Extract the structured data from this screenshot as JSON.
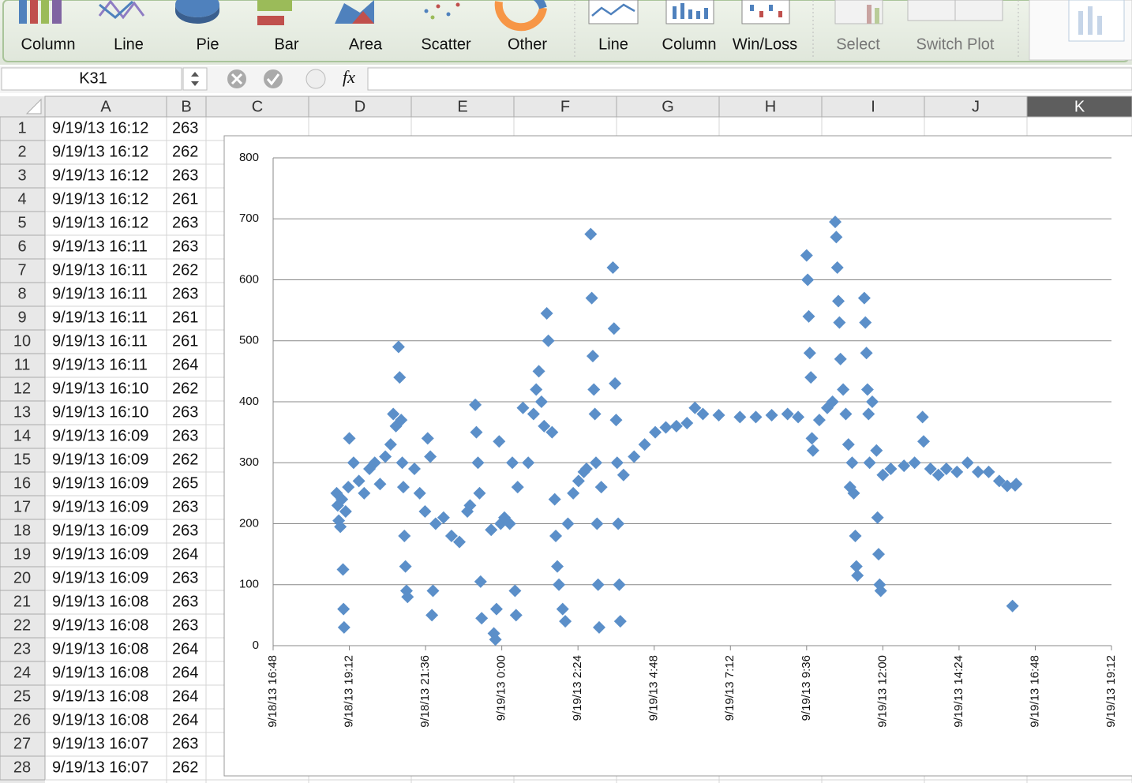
{
  "ribbon": {
    "buttons": [
      "Column",
      "Line",
      "Pie",
      "Bar",
      "Area",
      "Scatter",
      "Other",
      "Line",
      "Column",
      "Win/Loss",
      "Select",
      "Switch Plot"
    ]
  },
  "formula_bar": {
    "name_box": "K31",
    "fx": "fx"
  },
  "sheet": {
    "columns": [
      "A",
      "B",
      "C",
      "D",
      "E",
      "F",
      "G",
      "H",
      "I",
      "J",
      "K"
    ],
    "rows": [
      [
        1,
        "9/19/13 16:12",
        263
      ],
      [
        2,
        "9/19/13 16:12",
        262
      ],
      [
        3,
        "9/19/13 16:12",
        263
      ],
      [
        4,
        "9/19/13 16:12",
        261
      ],
      [
        5,
        "9/19/13 16:12",
        263
      ],
      [
        6,
        "9/19/13 16:11",
        263
      ],
      [
        7,
        "9/19/13 16:11",
        262
      ],
      [
        8,
        "9/19/13 16:11",
        263
      ],
      [
        9,
        "9/19/13 16:11",
        261
      ],
      [
        10,
        "9/19/13 16:11",
        261
      ],
      [
        11,
        "9/19/13 16:11",
        264
      ],
      [
        12,
        "9/19/13 16:10",
        262
      ],
      [
        13,
        "9/19/13 16:10",
        263
      ],
      [
        14,
        "9/19/13 16:09",
        263
      ],
      [
        15,
        "9/19/13 16:09",
        262
      ],
      [
        16,
        "9/19/13 16:09",
        265
      ],
      [
        17,
        "9/19/13 16:09",
        263
      ],
      [
        18,
        "9/19/13 16:09",
        263
      ],
      [
        19,
        "9/19/13 16:09",
        264
      ],
      [
        20,
        "9/19/13 16:09",
        263
      ],
      [
        21,
        "9/19/13 16:08",
        263
      ],
      [
        22,
        "9/19/13 16:08",
        263
      ],
      [
        23,
        "9/19/13 16:08",
        264
      ],
      [
        24,
        "9/19/13 16:08",
        264
      ],
      [
        25,
        "9/19/13 16:08",
        264
      ],
      [
        26,
        "9/19/13 16:08",
        264
      ],
      [
        27,
        "9/19/13 16:07",
        263
      ],
      [
        28,
        "9/19/13 16:07",
        262
      ]
    ]
  },
  "chart_data": {
    "type": "scatter",
    "grid": true,
    "xlim": [
      "9/18/13 16:48",
      "9/19/13 19:12"
    ],
    "xticks": [
      "9/18/13 16:48",
      "9/18/13 19:12",
      "9/18/13 21:36",
      "9/19/13 0:00",
      "9/19/13 2:24",
      "9/19/13 4:48",
      "9/19/13 7:12",
      "9/19/13 9:36",
      "9/19/13 12:00",
      "9/19/13 14:24",
      "9/19/13 16:48",
      "9/19/13 19:12"
    ],
    "ylim": [
      0,
      800
    ],
    "yticks": [
      0,
      100,
      200,
      300,
      400,
      500,
      600,
      700,
      800
    ],
    "series": [
      {
        "color": "#5b8fc9",
        "x": [
          "9/18/13 18:48",
          "9/18/13 18:50",
          "9/18/13 18:52",
          "9/18/13 18:55",
          "9/18/13 18:58",
          "9/18/13 19:00",
          "9/18/13 19:01",
          "9/18/13 19:02",
          "9/18/13 19:05",
          "9/18/13 19:10",
          "9/18/13 19:12",
          "9/18/13 19:20",
          "9/18/13 19:30",
          "9/18/13 19:40",
          "9/18/13 19:50",
          "9/18/13 20:00",
          "9/18/13 20:10",
          "9/18/13 20:20",
          "9/18/13 20:30",
          "9/18/13 20:35",
          "9/18/13 20:40",
          "9/18/13 20:45",
          "9/18/13 20:47",
          "9/18/13 20:50",
          "9/18/13 20:52",
          "9/18/13 20:54",
          "9/18/13 20:56",
          "9/18/13 20:58",
          "9/18/13 21:00",
          "9/18/13 21:02",
          "9/18/13 21:15",
          "9/18/13 21:25",
          "9/18/13 21:35",
          "9/18/13 21:40",
          "9/18/13 21:45",
          "9/18/13 21:48",
          "9/18/13 21:50",
          "9/18/13 21:55",
          "9/18/13 22:10",
          "9/18/13 22:25",
          "9/18/13 22:40",
          "9/18/13 22:55",
          "9/18/13 23:00",
          "9/18/13 23:10",
          "9/18/13 23:12",
          "9/18/13 23:15",
          "9/18/13 23:18",
          "9/18/13 23:20",
          "9/18/13 23:22",
          "9/18/13 23:40",
          "9/18/13 23:45",
          "9/18/13 23:48",
          "9/18/13 23:50",
          "9/18/13 23:55",
          "9/18/13 23:58",
          "9/19/13 0:05",
          "9/19/13 0:15",
          "9/19/13 0:20",
          "9/19/13 0:25",
          "9/19/13 0:27",
          "9/19/13 0:30",
          "9/19/13 0:40",
          "9/19/13 0:50",
          "9/19/13 1:00",
          "9/19/13 1:05",
          "9/19/13 1:10",
          "9/19/13 1:15",
          "9/19/13 1:20",
          "9/19/13 1:25",
          "9/19/13 1:28",
          "9/19/13 1:35",
          "9/19/13 1:40",
          "9/19/13 1:42",
          "9/19/13 1:45",
          "9/19/13 1:48",
          "9/19/13 1:55",
          "9/19/13 2:00",
          "9/19/13 2:05",
          "9/19/13 2:15",
          "9/19/13 2:25",
          "9/19/13 2:35",
          "9/19/13 2:40",
          "9/19/13 2:48",
          "9/19/13 2:50",
          "9/19/13 2:52",
          "9/19/13 2:54",
          "9/19/13 2:56",
          "9/19/13 2:58",
          "9/19/13 3:00",
          "9/19/13 3:02",
          "9/19/13 3:04",
          "9/19/13 3:08",
          "9/19/13 3:30",
          "9/19/13 3:32",
          "9/19/13 3:34",
          "9/19/13 3:36",
          "9/19/13 3:38",
          "9/19/13 3:40",
          "9/19/13 3:42",
          "9/19/13 3:44",
          "9/19/13 3:50",
          "9/19/13 4:10",
          "9/19/13 4:30",
          "9/19/13 4:50",
          "9/19/13 5:10",
          "9/19/13 5:30",
          "9/19/13 5:50",
          "9/19/13 6:05",
          "9/19/13 6:20",
          "9/19/13 6:50",
          "9/19/13 7:30",
          "9/19/13 8:00",
          "9/19/13 8:30",
          "9/19/13 9:00",
          "9/19/13 9:20",
          "9/19/13 9:36",
          "9/19/13 9:38",
          "9/19/13 9:40",
          "9/19/13 9:42",
          "9/19/13 9:44",
          "9/19/13 9:46",
          "9/19/13 9:48",
          "9/19/13 10:00",
          "9/19/13 10:15",
          "9/19/13 10:25",
          "9/19/13 10:30",
          "9/19/13 10:32",
          "9/19/13 10:34",
          "9/19/13 10:36",
          "9/19/13 10:38",
          "9/19/13 10:40",
          "9/19/13 10:45",
          "9/19/13 10:50",
          "9/19/13 10:55",
          "9/19/13 10:58",
          "9/19/13 11:02",
          "9/19/13 11:05",
          "9/19/13 11:08",
          "9/19/13 11:10",
          "9/19/13 11:12",
          "9/19/13 11:25",
          "9/19/13 11:27",
          "9/19/13 11:29",
          "9/19/13 11:31",
          "9/19/13 11:33",
          "9/19/13 11:35",
          "9/19/13 11:40",
          "9/19/13 11:48",
          "9/19/13 11:50",
          "9/19/13 11:52",
          "9/19/13 11:54",
          "9/19/13 11:56",
          "9/19/13 12:00",
          "9/19/13 12:15",
          "9/19/13 12:40",
          "9/19/13 13:00",
          "9/19/13 13:15",
          "9/19/13 13:17",
          "9/19/13 13:30",
          "9/19/13 13:45",
          "9/19/13 14:00",
          "9/19/13 14:20",
          "9/19/13 14:40",
          "9/19/13 15:00",
          "9/19/13 15:20",
          "9/19/13 15:40",
          "9/19/13 15:55",
          "9/19/13 16:05",
          "9/19/13 16:10",
          "9/19/13 16:12"
        ],
        "values": [
          250,
          230,
          205,
          195,
          240,
          125,
          60,
          30,
          220,
          260,
          340,
          300,
          270,
          250,
          290,
          300,
          265,
          310,
          330,
          380,
          360,
          490,
          440,
          370,
          300,
          260,
          180,
          130,
          90,
          80,
          290,
          250,
          220,
          340,
          310,
          50,
          90,
          200,
          210,
          180,
          170,
          220,
          230,
          395,
          350,
          300,
          250,
          105,
          45,
          190,
          20,
          10,
          60,
          335,
          200,
          210,
          200,
          300,
          90,
          50,
          260,
          390,
          300,
          380,
          420,
          450,
          400,
          360,
          545,
          500,
          350,
          240,
          180,
          130,
          100,
          60,
          40,
          200,
          250,
          270,
          285,
          290,
          675,
          570,
          475,
          420,
          380,
          300,
          200,
          100,
          30,
          260,
          620,
          520,
          430,
          370,
          300,
          200,
          100,
          40,
          280,
          310,
          330,
          350,
          358,
          360,
          365,
          390,
          380,
          378,
          375,
          375,
          378,
          380,
          375,
          640,
          600,
          540,
          480,
          440,
          340,
          320,
          370,
          390,
          400,
          695,
          670,
          620,
          565,
          530,
          470,
          420,
          380,
          330,
          260,
          300,
          250,
          180,
          130,
          115,
          570,
          530,
          480,
          420,
          380,
          300,
          400,
          320,
          210,
          150,
          100,
          90,
          280,
          290,
          295,
          300,
          375,
          335,
          290,
          280,
          290,
          285,
          300,
          285,
          285,
          270,
          262,
          65,
          263,
          265
        ]
      }
    ]
  }
}
